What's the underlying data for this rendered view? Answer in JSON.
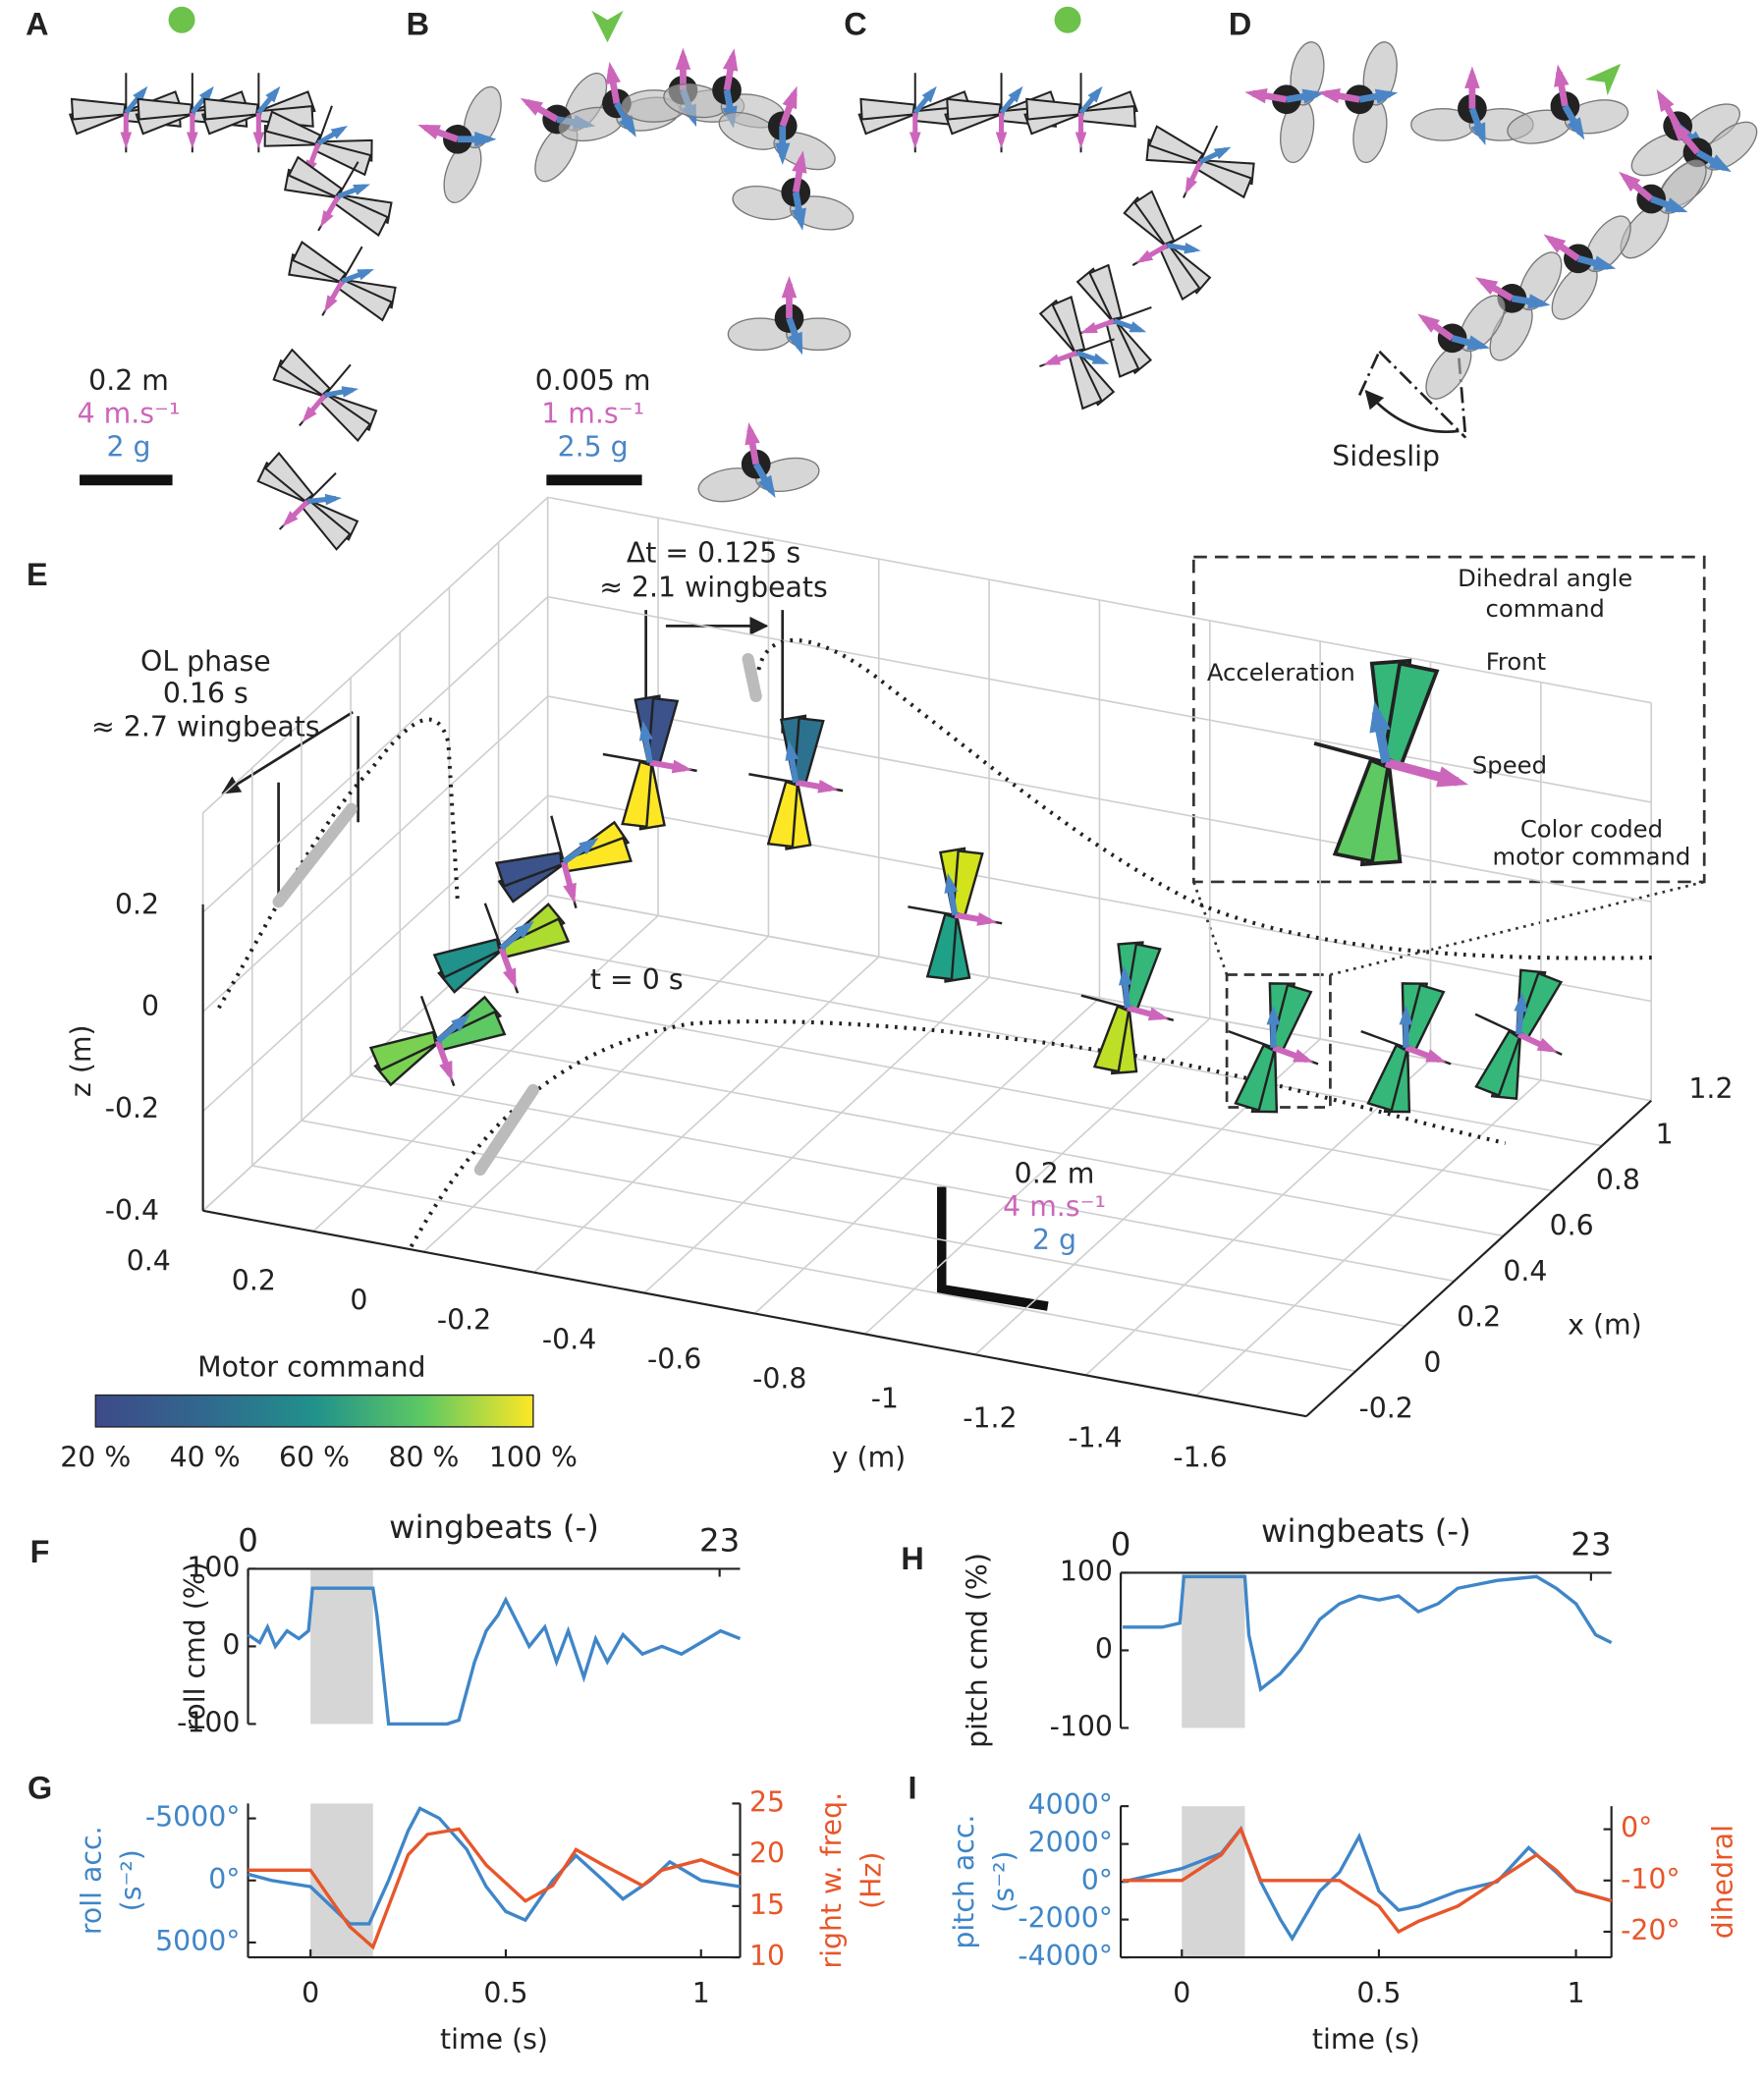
{
  "panels": {
    "A": {
      "label": "A",
      "scale": [
        "0.2 m",
        "4 m.s⁻¹",
        "2 g"
      ]
    },
    "B": {
      "label": "B",
      "scale": [
        "0.005 m",
        "1 m.s⁻¹",
        "2.5 g"
      ]
    },
    "C": {
      "label": "C"
    },
    "D": {
      "label": "D",
      "annotation": "Sideslip"
    },
    "E": {
      "label": "E",
      "annotations": {
        "dt": "Δt = 0.125 s",
        "dt_wb": "≈ 2.1 wingbeats",
        "ol": "OL phase",
        "ol_t": "0.16 s",
        "ol_wb": "≈ 2.7 wingbeats",
        "t0": "t = 0 s"
      },
      "inset": [
        "Dihedral angle",
        "command",
        "Front",
        "Acceleration",
        "Speed",
        "Color coded",
        "motor command"
      ],
      "z_label": "z (m)",
      "z_ticks": [
        "0.2",
        "0",
        "-0.2",
        "-0.4"
      ],
      "y_label": "y (m)",
      "y_ticks": [
        "0.4",
        "0.2",
        "0",
        "-0.2",
        "-0.4",
        "-0.6",
        "-0.8",
        "-1",
        "-1.2",
        "-1.4",
        "-1.6"
      ],
      "x_label": "x (m)",
      "x_ticks": [
        "1.2",
        "1",
        "0.8",
        "0.6",
        "0.4",
        "0.2",
        "0",
        "-0.2"
      ],
      "scale": [
        "0.2 m",
        "4 m.s⁻¹",
        "2 g"
      ],
      "colorbar": {
        "title": "Motor command",
        "ticks": [
          "20 %",
          "40 %",
          "60 %",
          "80 %",
          "100 %"
        ]
      }
    }
  },
  "chart_data": [
    {
      "panel": "F",
      "type": "line",
      "ylabel": [
        "roll cmd (%)"
      ],
      "x2label": "wingbeats (-)",
      "x2lim": [
        0,
        24
      ],
      "x2ticks": [
        0,
        23
      ],
      "xlim": [
        -0.16,
        1.1
      ],
      "ylim": [
        -100,
        100
      ],
      "yticks": [
        -100,
        0,
        100
      ],
      "shade": [
        0,
        0.16
      ],
      "series": [
        {
          "color": "#3f86c8",
          "x": [
            -0.16,
            -0.13,
            -0.11,
            -0.09,
            -0.06,
            -0.03,
            -0.005,
            0.005,
            0.16,
            0.17,
            0.2,
            0.25,
            0.3,
            0.35,
            0.38,
            0.42,
            0.45,
            0.48,
            0.5,
            0.53,
            0.56,
            0.6,
            0.63,
            0.66,
            0.7,
            0.73,
            0.76,
            0.8,
            0.85,
            0.9,
            0.95,
            1.0,
            1.05,
            1.1
          ],
          "values": [
            15,
            5,
            25,
            0,
            20,
            10,
            20,
            75,
            75,
            40,
            -100,
            -100,
            -100,
            -100,
            -95,
            -20,
            20,
            40,
            60,
            30,
            0,
            25,
            -20,
            20,
            -40,
            10,
            -20,
            15,
            -10,
            0,
            -10,
            5,
            20,
            10
          ]
        }
      ]
    },
    {
      "panel": "G",
      "type": "line",
      "ylabel": [
        "roll acc.",
        "(s⁻²)"
      ],
      "y2label": [
        "right w. freq.",
        "(Hz)"
      ],
      "xlabel": "time (s)",
      "xlim": [
        -0.16,
        1.1
      ],
      "xticks": [
        0,
        0.5,
        1
      ],
      "ylim": [
        6200,
        -6200
      ],
      "yticks": [
        {
          "value": -5000,
          "label": "-5000°"
        },
        {
          "value": 0,
          "label": "0°"
        },
        {
          "value": 5000,
          "label": "5000°"
        }
      ],
      "y2lim": [
        10,
        25
      ],
      "y2ticks": [
        10,
        15,
        20,
        25
      ],
      "shade": [
        0,
        0.16
      ],
      "series": [
        {
          "color": "#3f86c8",
          "x": [
            -0.16,
            -0.1,
            0,
            0.05,
            0.1,
            0.15,
            0.2,
            0.25,
            0.28,
            0.33,
            0.4,
            0.45,
            0.5,
            0.55,
            0.62,
            0.68,
            0.75,
            0.8,
            0.87,
            0.92,
            1.0,
            1.1
          ],
          "values": [
            -500,
            0,
            500,
            2000,
            3500,
            3500,
            0,
            -4000,
            -5800,
            -5000,
            -2500,
            500,
            2500,
            3200,
            0,
            -2000,
            0,
            1500,
            0,
            -1500,
            0,
            500
          ]
        },
        {
          "color": "#e8562a",
          "axis": "y2",
          "x": [
            -0.16,
            0,
            0.1,
            0.16,
            0.2,
            0.25,
            0.3,
            0.38,
            0.45,
            0.55,
            0.62,
            0.68,
            0.75,
            0.85,
            0.9,
            1.0,
            1.1
          ],
          "values": [
            18.5,
            18.5,
            13,
            11,
            15,
            20,
            22,
            22.5,
            19,
            15.5,
            17,
            20.5,
            19,
            17,
            18.5,
            19.5,
            18
          ]
        }
      ]
    },
    {
      "panel": "H",
      "type": "line",
      "ylabel": [
        "pitch cmd (%)"
      ],
      "x2label": "wingbeats (-)",
      "x2lim": [
        0,
        24
      ],
      "x2ticks": [
        0,
        23
      ],
      "xlim": [
        -0.155,
        1.09
      ],
      "ylim": [
        -100,
        100
      ],
      "yticks": [
        -100,
        0,
        100
      ],
      "shade": [
        0,
        0.16
      ],
      "series": [
        {
          "color": "#3f86c8",
          "x": [
            -0.15,
            -0.05,
            -0.005,
            0.005,
            0.16,
            0.17,
            0.2,
            0.25,
            0.3,
            0.35,
            0.4,
            0.45,
            0.5,
            0.55,
            0.6,
            0.65,
            0.7,
            0.8,
            0.9,
            0.95,
            1.0,
            1.05,
            1.09
          ],
          "values": [
            30,
            30,
            35,
            95,
            95,
            20,
            -50,
            -30,
            0,
            40,
            60,
            70,
            65,
            70,
            50,
            60,
            80,
            90,
            95,
            80,
            60,
            20,
            10
          ]
        }
      ]
    },
    {
      "panel": "I",
      "type": "line",
      "ylabel": [
        "pitch acc.",
        "(s⁻²)"
      ],
      "y2label": [
        "dihedral"
      ],
      "xlabel": "time (s)",
      "xlim": [
        -0.155,
        1.09
      ],
      "xticks": [
        0,
        0.5,
        1
      ],
      "ylim": [
        -4000,
        4000
      ],
      "yticks": [
        {
          "value": 4000,
          "label": "4000°"
        },
        {
          "value": 2000,
          "label": "2000°"
        },
        {
          "value": 0,
          "label": "0°"
        },
        {
          "value": -2000,
          "label": "-2000°"
        },
        {
          "value": -4000,
          "label": "-4000°"
        }
      ],
      "y2lim": [
        -25,
        4.5
      ],
      "y2ticks": [
        {
          "value": 0,
          "label": "0°"
        },
        {
          "value": -10,
          "label": "-10°"
        },
        {
          "value": -20,
          "label": "-20°"
        }
      ],
      "shade": [
        0,
        0.16
      ],
      "series": [
        {
          "color": "#3f86c8",
          "x": [
            -0.15,
            0,
            0.1,
            0.15,
            0.2,
            0.25,
            0.28,
            0.35,
            0.4,
            0.45,
            0.5,
            0.55,
            0.6,
            0.7,
            0.8,
            0.88,
            0.95,
            1.0,
            1.09
          ],
          "values": [
            0,
            700,
            1500,
            2800,
            0,
            -2000,
            -3000,
            -500,
            500,
            2400,
            -500,
            -1500,
            -1300,
            -500,
            0,
            1800,
            500,
            -500,
            -1000
          ]
        },
        {
          "color": "#e8562a",
          "axis": "y2",
          "x": [
            -0.15,
            0,
            0.1,
            0.15,
            0.2,
            0.4,
            0.5,
            0.55,
            0.6,
            0.7,
            0.8,
            0.9,
            0.95,
            1.0,
            1.09
          ],
          "values": [
            -10,
            -10,
            -5,
            0,
            -10,
            -10,
            -15,
            -20,
            -18,
            -15,
            -10,
            -5,
            -8,
            -12,
            -14
          ]
        }
      ]
    }
  ]
}
